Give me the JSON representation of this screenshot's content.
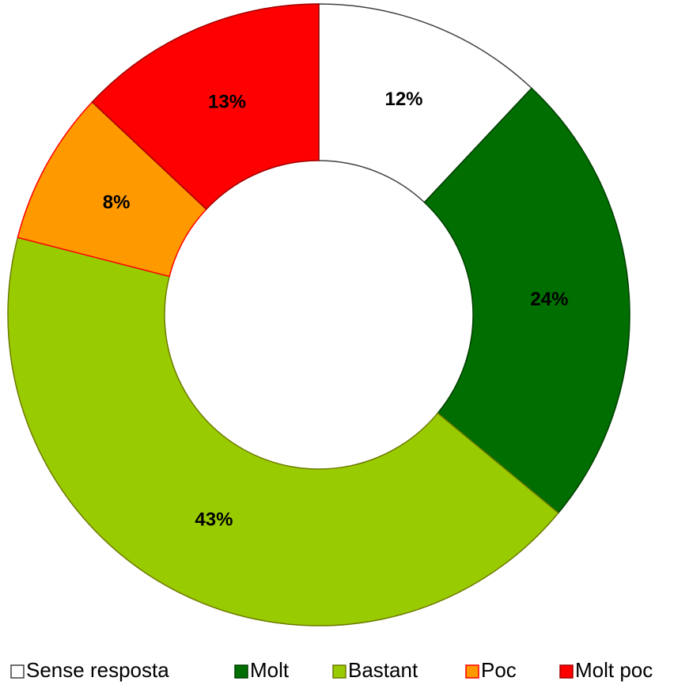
{
  "chart_data": {
    "type": "donut",
    "categories": [
      "Sense resposta",
      "Molt",
      "Bastant",
      "Poc",
      "Molt poc"
    ],
    "values": [
      12,
      24,
      43,
      8,
      13
    ],
    "value_labels": [
      "12%",
      "24%",
      "43%",
      "8%",
      "13%"
    ],
    "colors": [
      "#ffffff",
      "#006e00",
      "#99cc00",
      "#ff9900",
      "#ff0000"
    ],
    "edgecolors": [
      "#404040",
      "#004000",
      "#6e7a00",
      "#ff0000",
      "#a00000"
    ],
    "legend": "bottom"
  }
}
